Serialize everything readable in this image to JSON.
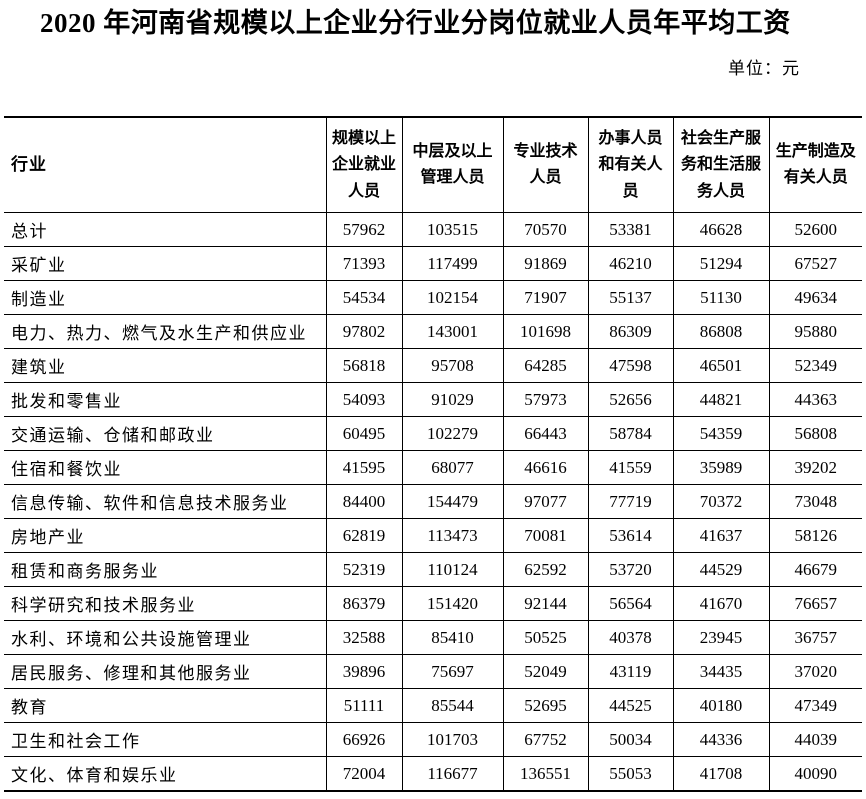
{
  "title": "2020 年河南省规模以上企业分行业分岗位就业人员年平均工资",
  "unit_label": "单位：元",
  "table": {
    "columns": [
      {
        "label": "行业"
      },
      {
        "label": "规模以上\n企业就业\n人员"
      },
      {
        "label": "中层及以上\n管理人员"
      },
      {
        "label": "专业技术\n人员"
      },
      {
        "label": "办事人员\n和有关人\n员"
      },
      {
        "label": "社会生产服\n务和生活服\n务人员"
      },
      {
        "label": "生产制造及\n有关人员"
      }
    ],
    "rows": [
      {
        "industry": "总计",
        "values": [
          57962,
          103515,
          70570,
          53381,
          46628,
          52600
        ]
      },
      {
        "industry": "采矿业",
        "values": [
          71393,
          117499,
          91869,
          46210,
          51294,
          67527
        ]
      },
      {
        "industry": "制造业",
        "values": [
          54534,
          102154,
          71907,
          55137,
          51130,
          49634
        ]
      },
      {
        "industry": "电力、热力、燃气及水生产和供应业",
        "values": [
          97802,
          143001,
          101698,
          86309,
          86808,
          95880
        ]
      },
      {
        "industry": "建筑业",
        "values": [
          56818,
          95708,
          64285,
          47598,
          46501,
          52349
        ]
      },
      {
        "industry": "批发和零售业",
        "values": [
          54093,
          91029,
          57973,
          52656,
          44821,
          44363
        ]
      },
      {
        "industry": "交通运输、仓储和邮政业",
        "values": [
          60495,
          102279,
          66443,
          58784,
          54359,
          56808
        ]
      },
      {
        "industry": "住宿和餐饮业",
        "values": [
          41595,
          68077,
          46616,
          41559,
          35989,
          39202
        ]
      },
      {
        "industry": "信息传输、软件和信息技术服务业",
        "values": [
          84400,
          154479,
          97077,
          77719,
          70372,
          73048
        ]
      },
      {
        "industry": "房地产业",
        "values": [
          62819,
          113473,
          70081,
          53614,
          41637,
          58126
        ]
      },
      {
        "industry": "租赁和商务服务业",
        "values": [
          52319,
          110124,
          62592,
          53720,
          44529,
          46679
        ]
      },
      {
        "industry": "科学研究和技术服务业",
        "values": [
          86379,
          151420,
          92144,
          56564,
          41670,
          76657
        ]
      },
      {
        "industry": "水利、环境和公共设施管理业",
        "values": [
          32588,
          85410,
          50525,
          40378,
          23945,
          36757
        ]
      },
      {
        "industry": "居民服务、修理和其他服务业",
        "values": [
          39896,
          75697,
          52049,
          43119,
          34435,
          37020
        ]
      },
      {
        "industry": "教育",
        "values": [
          51111,
          85544,
          52695,
          44525,
          40180,
          47349
        ]
      },
      {
        "industry": "卫生和社会工作",
        "values": [
          66926,
          101703,
          67752,
          50034,
          44336,
          44039
        ]
      },
      {
        "industry": "文化、体育和娱乐业",
        "values": [
          72004,
          116677,
          136551,
          55053,
          41708,
          40090
        ]
      }
    ]
  }
}
